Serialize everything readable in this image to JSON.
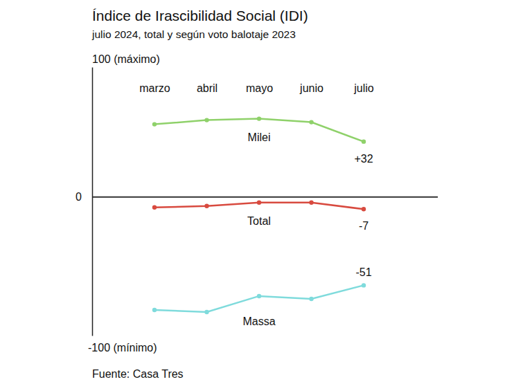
{
  "chart_data": {
    "type": "line",
    "title": "Índice de Irascibilidad Social (IDI)",
    "subtitle": "julio 2024, total y según voto balotaje 2023",
    "categories": [
      "marzo",
      "abril",
      "mayo",
      "junio",
      "julio"
    ],
    "series": [
      {
        "name": "Milei",
        "color": "#8fd16a",
        "values": [
          42,
          44.4,
          45.2,
          43.2,
          32
        ],
        "value_labels": [
          null,
          null,
          null,
          null,
          "+32"
        ]
      },
      {
        "name": "Total",
        "color": "#d84a3f",
        "values": [
          -6,
          -5.2,
          -3.2,
          -3.2,
          -7
        ],
        "value_labels": [
          null,
          null,
          null,
          null,
          "-7"
        ]
      },
      {
        "name": "Massa",
        "color": "#7fdbdc",
        "values": [
          -65.2,
          -66.4,
          -57.2,
          -58.8,
          -51
        ],
        "value_labels": [
          null,
          null,
          null,
          null,
          "-51"
        ]
      }
    ],
    "ylim": [
      -80,
      75
    ],
    "yticks": [
      0
    ],
    "grid": true,
    "data_labels": true,
    "marker": "circle",
    "annotations": [
      "100 (máximo)",
      "-100 (mínimo)"
    ],
    "source": "Fuente: Casa Tres"
  }
}
